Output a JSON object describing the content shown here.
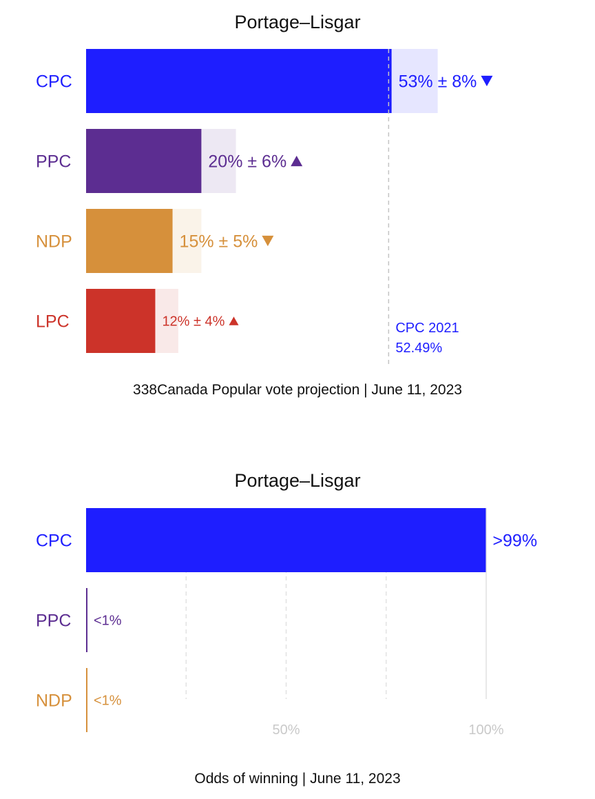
{
  "colors": {
    "CPC": "#1e1eff",
    "PPC": "#5c2d91",
    "NDP": "#d6903b",
    "LPC": "#cc3329"
  },
  "chart_data": [
    {
      "type": "bar",
      "title": "Portage–Lisgar",
      "footer": "338Canada Popular vote projection | June 11, 2023",
      "categories": [
        "CPC",
        "PPC",
        "NDP",
        "LPC"
      ],
      "values": [
        53,
        20,
        15,
        12
      ],
      "margins": [
        8,
        6,
        5,
        4
      ],
      "labels": [
        "53% ± 8%",
        "20% ± 6%",
        "15% ± 5%",
        "12% ± 4%"
      ],
      "trends": [
        "down",
        "up",
        "down",
        "up"
      ],
      "reference": {
        "party": "CPC",
        "value": 52.49,
        "label_line1": "CPC 2021",
        "label_line2": "52.49%"
      },
      "xlim": [
        0,
        65
      ]
    },
    {
      "type": "bar",
      "title": "Portage–Lisgar",
      "footer": "Odds of winning | June 11, 2023",
      "categories": [
        "CPC",
        "PPC",
        "NDP"
      ],
      "values": [
        99.9,
        0.1,
        0.1
      ],
      "labels": [
        ">99%",
        "<1%",
        "<1%"
      ],
      "ticks": [
        25,
        50,
        75,
        100
      ],
      "tick_labels": [
        "",
        "50%",
        "",
        "100%"
      ],
      "xlim": [
        0,
        100
      ]
    }
  ]
}
